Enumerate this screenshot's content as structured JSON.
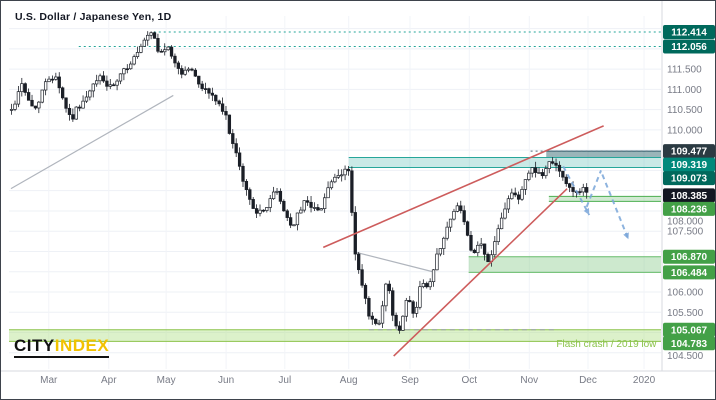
{
  "logo": {
    "part1": "CITY",
    "part2": "INDEX"
  },
  "chart_data": {
    "type": "candlestick",
    "title": "U.S. Dollar / Japanese Yen, 1D",
    "y_domain": [
      104.1,
      112.81
    ],
    "grid": {
      "h_min": 104.5,
      "h_max": 112.5,
      "h_step": 0.5
    },
    "y_ticks_plain": [
      111.5,
      111.0,
      110.5,
      110.0,
      108.0,
      107.5,
      106.0,
      105.5,
      104.5
    ],
    "label_styles": {
      "teal-dark": "#00695c",
      "teal": "#00897b",
      "navy": "#2b3a42",
      "last": "#131722",
      "green": "#43a047"
    },
    "price_levels": [
      {
        "price": 112.414,
        "label": "112.414",
        "style": "teal-dark",
        "line": {
          "from": 0.222,
          "color": "#26a69a"
        }
      },
      {
        "price": 112.056,
        "label": "112.056",
        "style": "teal-dark",
        "line": {
          "from": 0.107,
          "color": "#26a69a"
        }
      },
      {
        "price": 109.477,
        "label": "109.477",
        "style": "navy",
        "line": {
          "from": 0.8,
          "color": "#546e7a"
        }
      },
      {
        "price": 109.319,
        "label": "109.319",
        "style": "teal"
      },
      {
        "price": 109.073,
        "label": "109.073",
        "style": "teal-dark"
      },
      {
        "price": 108.385,
        "label": "108.385",
        "style": "last"
      },
      {
        "price": 108.236,
        "label": "108.236",
        "style": "green"
      },
      {
        "price": 106.87,
        "label": "106.870",
        "style": "green"
      },
      {
        "price": 106.484,
        "label": "106.484",
        "style": "green"
      },
      {
        "price": 105.067,
        "label": "105.067",
        "style": "green"
      },
      {
        "price": 104.783,
        "label": "104.783",
        "style": "green"
      }
    ],
    "zones": [
      {
        "top": 109.477,
        "bottom": 109.319,
        "from": 0.824,
        "fill": "rgba(30,90,100,0.45)",
        "edge": "#2f5d6b"
      },
      {
        "top": 109.319,
        "bottom": 109.073,
        "from": 0.521,
        "fill": "rgba(38,166,154,0.25)",
        "edge": "#26a69a"
      },
      {
        "top": 108.36,
        "bottom": 108.236,
        "from": 0.828,
        "fill": "rgba(102,187,106,0.30)",
        "edge": "#4caf50"
      },
      {
        "top": 106.87,
        "bottom": 106.484,
        "from": 0.705,
        "fill": "rgba(129,199,132,0.40)",
        "edge": "#66bb6a"
      },
      {
        "top": 105.067,
        "bottom": 104.783,
        "from": 0.0,
        "fill": "rgba(178,223,138,0.45)",
        "edge": "#8bc34a"
      }
    ],
    "dashed_line": {
      "price": 105.067,
      "from": 0.552,
      "to": 0.842,
      "color": "#9aa0a6"
    },
    "trendlines": [
      {
        "x1": 0.003,
        "p1": 108.55,
        "x2": 0.252,
        "p2": 110.85,
        "color": "#b0b5bd",
        "width": 1.2,
        "layer": "under"
      },
      {
        "x1": 0.532,
        "p1": 106.98,
        "x2": 0.65,
        "p2": 106.5,
        "color": "#b0b5bd",
        "width": 1.2,
        "layer": "under"
      },
      {
        "x1": 0.482,
        "p1": 107.1,
        "x2": 0.912,
        "p2": 110.1,
        "color": "#cd5c5c",
        "width": 1.6,
        "layer": "over"
      },
      {
        "x1": 0.59,
        "p1": 104.42,
        "x2": 0.856,
        "p2": 108.55,
        "color": "#cd5c5c",
        "width": 1.6,
        "layer": "over"
      }
    ],
    "arrow_color": "#7aa6d9",
    "arrows": [
      {
        "x1": 0.85,
        "p1": 109.1,
        "x2": 0.89,
        "p2": 107.9,
        "head": true
      },
      {
        "x1": 0.886,
        "p1": 108.1,
        "x2": 0.908,
        "p2": 109.0,
        "head": false
      },
      {
        "x1": 0.91,
        "p1": 108.9,
        "x2": 0.95,
        "p2": 107.3,
        "head": true
      }
    ],
    "annotation": {
      "text": "Flash crash / 2019 low",
      "x": 0.993,
      "price": 104.64,
      "color": "#8bc34a"
    },
    "x_labels": [
      {
        "text": "Mar",
        "f": 0.061
      },
      {
        "text": "Apr",
        "f": 0.153
      },
      {
        "text": "May",
        "f": 0.241
      },
      {
        "text": "Jun",
        "f": 0.333
      },
      {
        "text": "Jul",
        "f": 0.423
      },
      {
        "text": "Aug",
        "f": 0.521
      },
      {
        "text": "Sep",
        "f": 0.615
      },
      {
        "text": "Oct",
        "f": 0.706
      },
      {
        "text": "Nov",
        "f": 0.798
      },
      {
        "text": "Dec",
        "f": 0.888
      },
      {
        "text": "2020",
        "f": 0.974
      }
    ],
    "candle_gen": {
      "count": 170,
      "seed": 42,
      "x_from": 0.004,
      "x_to": 0.886,
      "close_noise": 0.17,
      "wick": 0.16
    },
    "price_path": [
      [
        0.003,
        110.45
      ],
      [
        0.012,
        110.8
      ],
      [
        0.02,
        111.2
      ],
      [
        0.03,
        110.7
      ],
      [
        0.04,
        110.5
      ],
      [
        0.05,
        110.95
      ],
      [
        0.062,
        111.3
      ],
      [
        0.072,
        111.35
      ],
      [
        0.082,
        110.8
      ],
      [
        0.095,
        110.25
      ],
      [
        0.107,
        110.6
      ],
      [
        0.118,
        110.75
      ],
      [
        0.13,
        111.1
      ],
      [
        0.141,
        111.35
      ],
      [
        0.153,
        111.0
      ],
      [
        0.165,
        111.15
      ],
      [
        0.176,
        111.45
      ],
      [
        0.188,
        111.7
      ],
      [
        0.2,
        111.95
      ],
      [
        0.213,
        112.3
      ],
      [
        0.222,
        112.35
      ],
      [
        0.228,
        111.9
      ],
      [
        0.241,
        112.05
      ],
      [
        0.253,
        111.7
      ],
      [
        0.265,
        111.4
      ],
      [
        0.277,
        111.55
      ],
      [
        0.289,
        111.2
      ],
      [
        0.3,
        111.0
      ],
      [
        0.312,
        110.85
      ],
      [
        0.322,
        110.6
      ],
      [
        0.333,
        110.3
      ],
      [
        0.345,
        109.55
      ],
      [
        0.357,
        108.85
      ],
      [
        0.368,
        108.3
      ],
      [
        0.377,
        108.05
      ],
      [
        0.388,
        107.9
      ],
      [
        0.4,
        108.3
      ],
      [
        0.41,
        108.5
      ],
      [
        0.421,
        108.05
      ],
      [
        0.433,
        107.6
      ],
      [
        0.445,
        107.95
      ],
      [
        0.456,
        108.3
      ],
      [
        0.466,
        108.1
      ],
      [
        0.475,
        107.95
      ],
      [
        0.486,
        108.45
      ],
      [
        0.495,
        108.75
      ],
      [
        0.505,
        108.8
      ],
      [
        0.514,
        108.95
      ],
      [
        0.52,
        109.15
      ],
      [
        0.525,
        108.2
      ],
      [
        0.529,
        107.1
      ],
      [
        0.537,
        106.45
      ],
      [
        0.545,
        105.9
      ],
      [
        0.553,
        105.35
      ],
      [
        0.561,
        105.2
      ],
      [
        0.568,
        105.15
      ],
      [
        0.574,
        105.75
      ],
      [
        0.579,
        106.25
      ],
      [
        0.585,
        105.85
      ],
      [
        0.591,
        105.25
      ],
      [
        0.598,
        104.95
      ],
      [
        0.605,
        105.55
      ],
      [
        0.61,
        105.9
      ],
      [
        0.617,
        105.6
      ],
      [
        0.623,
        105.5
      ],
      [
        0.63,
        106.05
      ],
      [
        0.636,
        106.3
      ],
      [
        0.643,
        106.05
      ],
      [
        0.65,
        106.45
      ],
      [
        0.657,
        106.95
      ],
      [
        0.664,
        107.25
      ],
      [
        0.671,
        107.55
      ],
      [
        0.678,
        107.8
      ],
      [
        0.686,
        108.05
      ],
      [
        0.692,
        108.15
      ],
      [
        0.699,
        107.6
      ],
      [
        0.706,
        107.15
      ],
      [
        0.712,
        106.85
      ],
      [
        0.718,
        107.1
      ],
      [
        0.724,
        107.25
      ],
      [
        0.73,
        106.85
      ],
      [
        0.736,
        106.7
      ],
      [
        0.743,
        107.15
      ],
      [
        0.75,
        107.6
      ],
      [
        0.757,
        107.95
      ],
      [
        0.764,
        108.25
      ],
      [
        0.771,
        108.45
      ],
      [
        0.777,
        108.3
      ],
      [
        0.783,
        108.35
      ],
      [
        0.79,
        108.7
      ],
      [
        0.797,
        108.95
      ],
      [
        0.804,
        109.1
      ],
      [
        0.811,
        108.95
      ],
      [
        0.818,
        108.85
      ],
      [
        0.825,
        109.1
      ],
      [
        0.832,
        109.3
      ],
      [
        0.839,
        109.15
      ],
      [
        0.845,
        109.0
      ],
      [
        0.852,
        108.75
      ],
      [
        0.859,
        108.55
      ],
      [
        0.866,
        108.45
      ],
      [
        0.873,
        108.5
      ],
      [
        0.879,
        108.6
      ],
      [
        0.886,
        108.4
      ]
    ]
  }
}
